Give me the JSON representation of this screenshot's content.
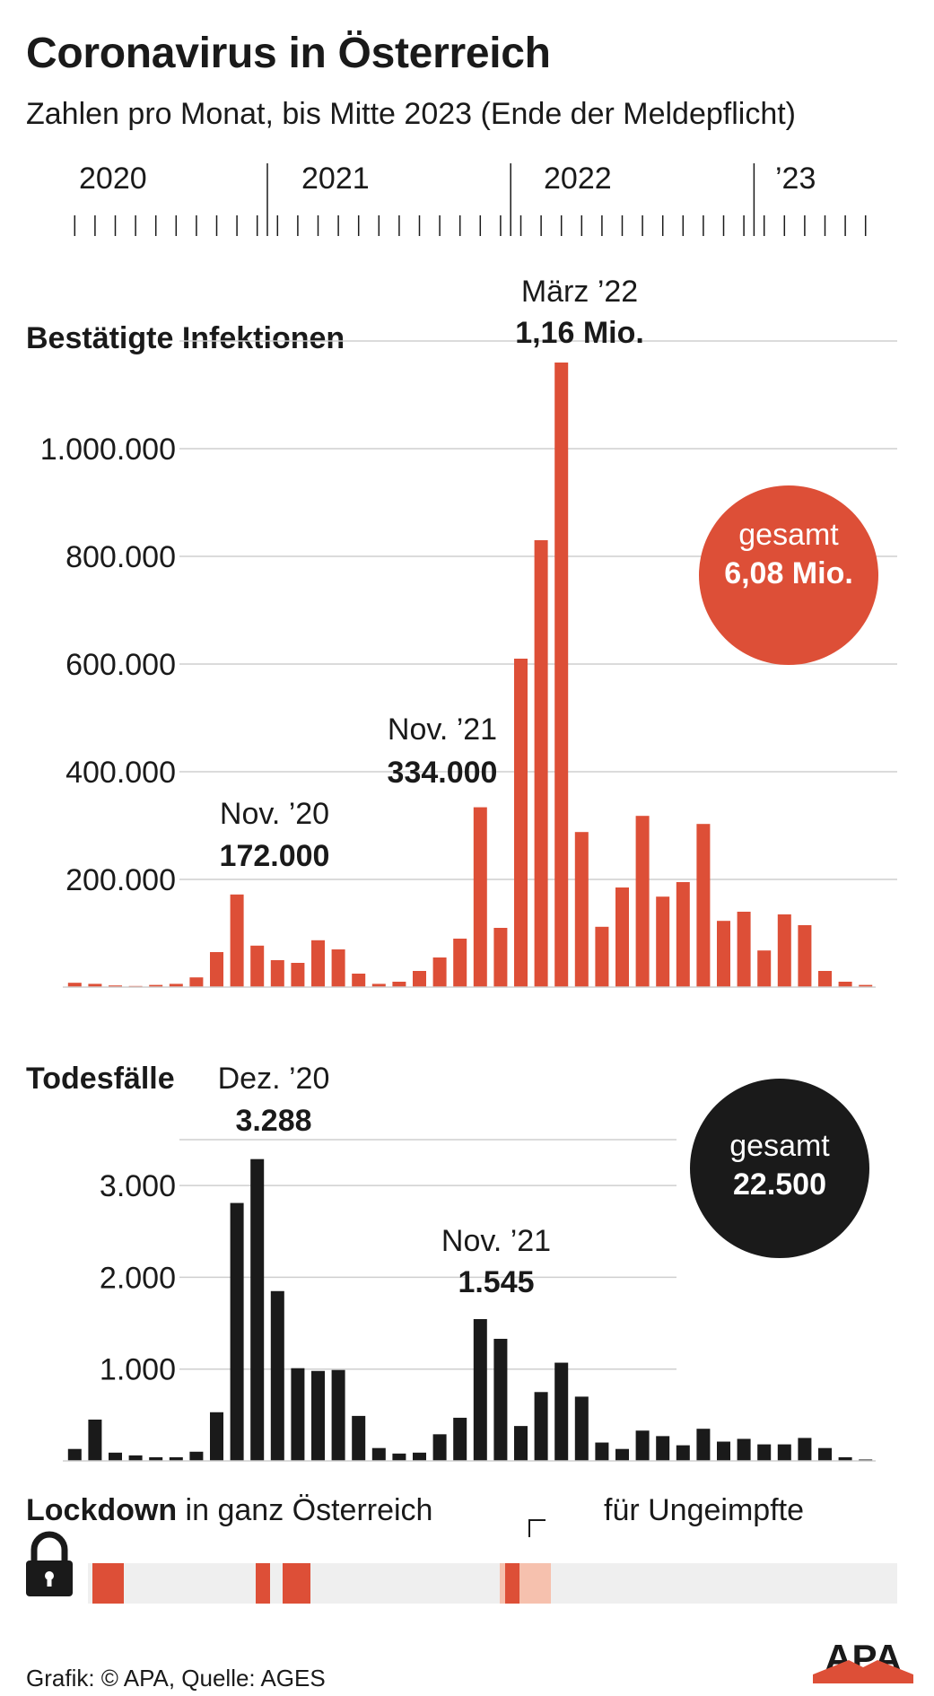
{
  "title": "Coronavirus in Österreich",
  "subtitle": "Zahlen pro Monat, bis Mitte 2023 (Ende der Meldepflicht)",
  "timeline_years": [
    "2020",
    "2021",
    "2022",
    "’23"
  ],
  "chart_data": [
    {
      "type": "bar",
      "title": "Bestätigte Infektionen",
      "ylim": [
        0,
        1200000
      ],
      "yticks": [
        200000,
        400000,
        600000,
        800000,
        1000000
      ],
      "ytick_labels": [
        "200.000",
        "400.000",
        "600.000",
        "800.000",
        "1.000.000"
      ],
      "grid": true,
      "color": "#dd4f37",
      "values": [
        8000,
        6000,
        3000,
        2000,
        4000,
        6000,
        18000,
        65000,
        172000,
        77000,
        50000,
        45000,
        87000,
        70000,
        25000,
        6000,
        10000,
        30000,
        55000,
        90000,
        334000,
        110000,
        610000,
        830000,
        1160000,
        288000,
        112000,
        185000,
        318000,
        168000,
        195000,
        303000,
        123000,
        140000,
        68000,
        135000,
        115000,
        30000,
        10000,
        4000
      ],
      "annotations": [
        {
          "month": "Nov. ’20",
          "value": "172.000"
        },
        {
          "month": "Nov. ’21",
          "value": "334.000"
        },
        {
          "month": "März ’22",
          "value": "1,16 Mio."
        }
      ],
      "total": {
        "label": "gesamt",
        "value": "6,08 Mio.",
        "color": "#dd4f37"
      }
    },
    {
      "type": "bar",
      "title": "Todesfälle",
      "ylim": [
        0,
        3500
      ],
      "yticks": [
        1000,
        2000,
        3000
      ],
      "ytick_labels": [
        "1.000",
        "2.000",
        "3.000"
      ],
      "grid": true,
      "color": "#1a1a1a",
      "values": [
        130,
        450,
        90,
        60,
        40,
        40,
        100,
        530,
        2810,
        3288,
        1850,
        1010,
        980,
        990,
        490,
        140,
        80,
        90,
        290,
        470,
        1545,
        1330,
        380,
        750,
        1070,
        700,
        200,
        130,
        330,
        270,
        170,
        350,
        210,
        240,
        180,
        180,
        250,
        140,
        40,
        15
      ],
      "annotations": [
        {
          "month": "Dez. ’20",
          "value": "3.288"
        },
        {
          "month": "Nov. ’21",
          "value": "1.545"
        }
      ],
      "total": {
        "label": "gesamt",
        "value": "22.500",
        "color": "#1a1a1a"
      }
    }
  ],
  "lockdown": {
    "label_bold": "Lockdown",
    "label_rest": " in ganz Österreich",
    "unvaccinated_label": "für Ungeimpfte",
    "colors": {
      "full": "#dd4f37",
      "unvaccinated": "#f6c1ae",
      "track": "#efefef"
    }
  },
  "footer": "Grafik: © APA, Quelle: AGES",
  "logo_text": "APA"
}
